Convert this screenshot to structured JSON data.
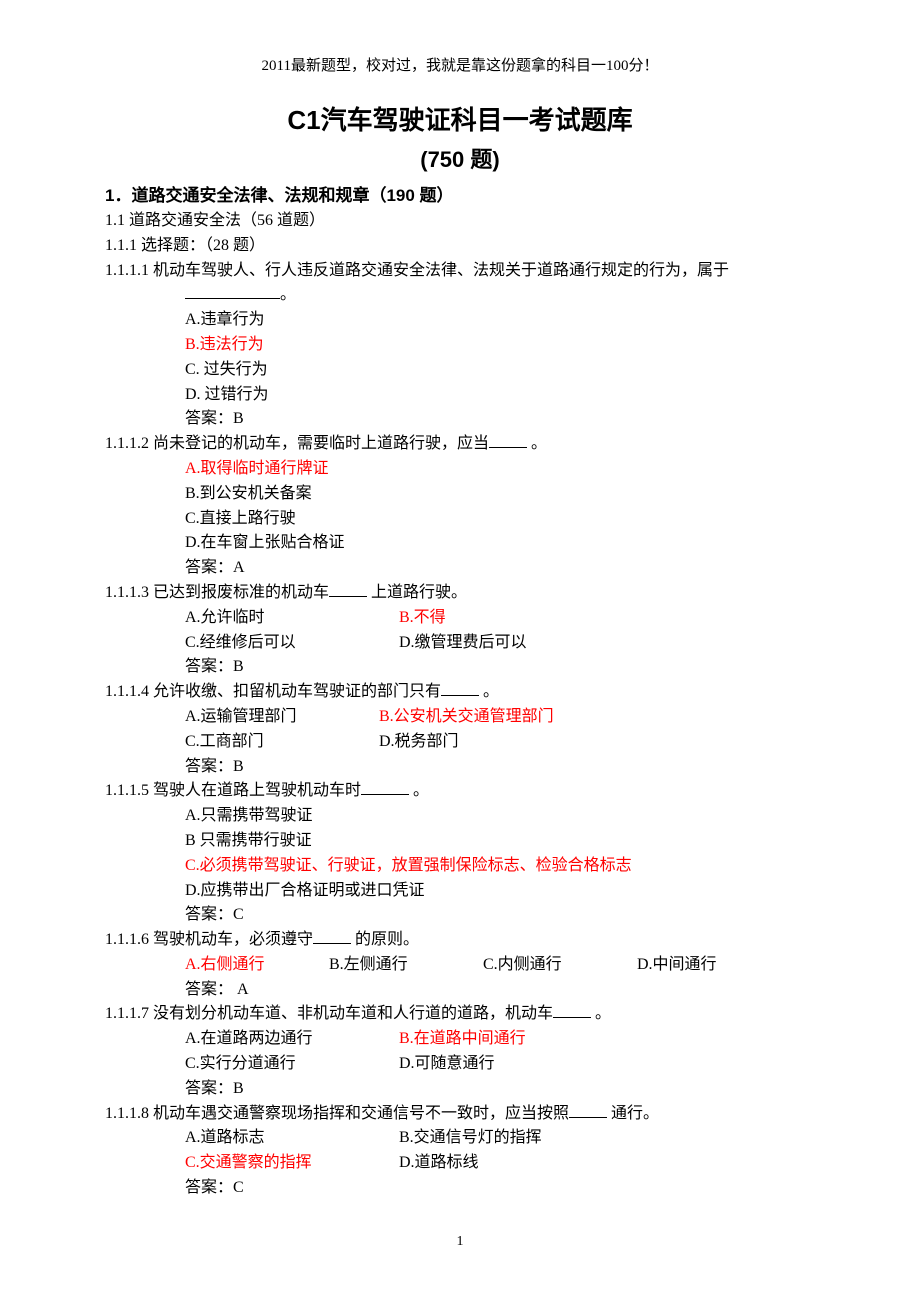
{
  "header": "2011最新题型，校对过，我就是靠这份题拿的科目一100分！",
  "title": "C1汽车驾驶证科目一考试题库",
  "subtitle": "(750 题)",
  "section1": "1．道路交通安全法律、法规和规章（190 题）",
  "section11": "1.1 道路交通安全法（56 道题）",
  "section111": "1.1.1 选择题：（28 题）",
  "q1": {
    "num": "1.1.1.1",
    "text": " 机动车驾驶人、行人违反道路交通安全法律、法规关于道路通行规定的行为，属于",
    "tail": "。",
    "a": "A.违章行为",
    "b": "B.违法行为",
    "c": "C. 过失行为",
    "d": "D. 过错行为",
    "ans": "答案：B"
  },
  "q2": {
    "num": "1.1.1.2",
    "text": " 尚未登记的机动车，需要临时上道路行驶，应当",
    "tail": " 。",
    "a": "A.取得临时通行牌证",
    "b": "B.到公安机关备案",
    "c": "C.直接上路行驶",
    "d": "D.在车窗上张贴合格证",
    "ans": "答案：A"
  },
  "q3": {
    "num": "1.1.1.3",
    "text_a": " 已达到报废标准的机动车",
    "text_b": " 上道路行驶。",
    "a": "A.允许临时",
    "b": "B.不得",
    "c": "C.经维修后可以",
    "d": "D.缴管理费后可以",
    "ans": "答案：B"
  },
  "q4": {
    "num": "1.1.1.4",
    "text": " 允许收缴、扣留机动车驾驶证的部门只有",
    "tail": " 。",
    "a": "A.运输管理部门",
    "b": "B.公安机关交通管理部门",
    "c": "C.工商部门",
    "d": "D.税务部门",
    "ans": "答案：B"
  },
  "q5": {
    "num": "1.1.1.5",
    "text": " 驾驶人在道路上驾驶机动车时",
    "tail": " 。",
    "a": "A.只需携带驾驶证",
    "b": "B 只需携带行驶证",
    "c": "C.必须携带驾驶证、行驶证，放置强制保险标志、检验合格标志",
    "d": "D.应携带出厂合格证明或进口凭证",
    "ans": "答案：C"
  },
  "q6": {
    "num": "1.1.1.6",
    "text": " 驾驶机动车，必须遵守",
    "tail": " 的原则。",
    "a": "A.右侧通行",
    "b": "B.左侧通行",
    "c": "C.内侧通行",
    "d": "D.中间通行",
    "ans": "答案： A"
  },
  "q7": {
    "num": "1.1.1.7",
    "text": " 没有划分机动车道、非机动车道和人行道的道路，机动车",
    "tail": " 。",
    "a": "A.在道路两边通行",
    "b": "B.在道路中间通行",
    "c": "C.实行分道通行",
    "d": "D.可随意通行",
    "ans": "答案：B"
  },
  "q8": {
    "num": "1.1.1.8",
    "text": " 机动车遇交通警察现场指挥和交通信号不一致时，应当按照",
    "tail": " 通行。",
    "a": "A.道路标志",
    "b": "B.交通信号灯的指挥",
    "c": "C.交通警察的指挥",
    "d": "D.道路标线",
    "ans": "答案：C"
  },
  "pagenum": "1"
}
